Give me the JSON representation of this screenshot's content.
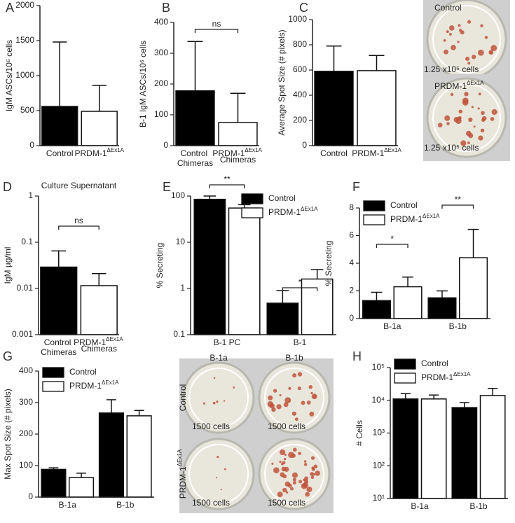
{
  "chart_data": [
    {
      "panel": "A",
      "type": "bar",
      "y_label": "IgM ASCs/10⁶ cells",
      "categories": [
        "Control",
        "PRDM-1ΔEx1A"
      ],
      "values": [
        560,
        490
      ],
      "errors": [
        920,
        370
      ],
      "colors": [
        "#000000",
        "#ffffff"
      ],
      "ylim": [
        0,
        2000
      ],
      "yticks": [
        0,
        500,
        1000,
        1500,
        2000
      ]
    },
    {
      "panel": "B",
      "type": "bar",
      "y_label": "B-1 IgM ASCs/10⁶ cells",
      "categories": [
        "Control Chimeras",
        "PRDM-1ΔEx1A Chimeras"
      ],
      "values": [
        178,
        75
      ],
      "errors": [
        160,
        95
      ],
      "colors": [
        "#000000",
        "#ffffff"
      ],
      "ylim": [
        0,
        400
      ],
      "yticks": [
        0,
        100,
        200,
        300,
        400
      ],
      "annotations": [
        "ns"
      ]
    },
    {
      "panel": "C",
      "type": "bar",
      "y_label": "Average Spot Size (# pixels)",
      "categories": [
        "Control",
        "PRDM-1ΔEx1A"
      ],
      "values": [
        590,
        595
      ],
      "errors": [
        200,
        120
      ],
      "colors": [
        "#000000",
        "#ffffff"
      ],
      "ylim": [
        0,
        1000
      ],
      "yticks": [
        0,
        200,
        400,
        600,
        800,
        1000
      ],
      "images": [
        {
          "label": "Control",
          "caption": "1.25 x10⁵ cells"
        },
        {
          "label": "PRDM-1ΔEx1A",
          "caption": "1.25 x10⁵ cells"
        }
      ]
    },
    {
      "panel": "D",
      "type": "bar",
      "title": "Culture Supernatant",
      "y_label": "IgM µg/ml",
      "categories": [
        "Control Chimeras",
        "PRDM-1ΔEx1A Chimeras"
      ],
      "values": [
        0.029,
        0.0115
      ],
      "errors": [
        0.036,
        0.0095
      ],
      "colors": [
        "#000000",
        "#ffffff"
      ],
      "log_scale": true,
      "ylim": [
        0.001,
        1
      ],
      "yticks": [
        0.001,
        0.01,
        0.1,
        1
      ],
      "annotations": [
        "ns"
      ]
    },
    {
      "panel": "E",
      "type": "bar",
      "y_label": "% Secreting",
      "categories": [
        "B-1 PC",
        "B-1"
      ],
      "series": [
        {
          "name": "Control",
          "color": "#000000",
          "values": [
            85,
            0.48
          ],
          "errors": [
            15,
            0.42
          ]
        },
        {
          "name": "PRDM-1ΔEx1A",
          "color": "#ffffff",
          "values": [
            55,
            1.6
          ],
          "errors": [
            10,
            0.95
          ]
        }
      ],
      "log_scale": true,
      "ylim": [
        0.1,
        100
      ],
      "yticks": [
        0.1,
        1,
        10,
        100
      ],
      "annotations": [
        "**",
        "*"
      ],
      "legend": "top-right"
    },
    {
      "panel": "F",
      "type": "bar",
      "y_label": "% Secreting",
      "categories": [
        "B-1a",
        "B-1b"
      ],
      "series": [
        {
          "name": "Control",
          "color": "#000000",
          "values": [
            1.3,
            1.5
          ],
          "errors": [
            0.6,
            0.5
          ]
        },
        {
          "name": "PRDM-1ΔEx1A",
          "color": "#ffffff",
          "values": [
            2.3,
            4.4
          ],
          "errors": [
            0.7,
            2.05
          ]
        }
      ],
      "ylim": [
        0,
        8
      ],
      "yticks": [
        0,
        2,
        4,
        6,
        8
      ],
      "annotations": [
        "*",
        "**"
      ],
      "legend": "top-left"
    },
    {
      "panel": "G",
      "type": "bar",
      "y_label": "Max Spot Size (# pixels)",
      "categories": [
        "B-1a",
        "B-1b"
      ],
      "series": [
        {
          "name": "Control",
          "color": "#000000",
          "values": [
            88,
            267
          ],
          "errors": [
            5,
            42
          ]
        },
        {
          "name": "PRDM-1ΔEx1A",
          "color": "#ffffff",
          "values": [
            62,
            258
          ],
          "errors": [
            14,
            17
          ]
        }
      ],
      "ylim": [
        0,
        400
      ],
      "yticks": [
        0,
        100,
        200,
        300,
        400
      ],
      "legend": "top-left",
      "image_grid": {
        "columns": [
          "B-1a",
          "B-1b"
        ],
        "rows": [
          "Control",
          "PRDM-1ΔEx1A"
        ],
        "caption": "1500 cells"
      }
    },
    {
      "panel": "H",
      "type": "bar",
      "y_label": "# Cells",
      "categories": [
        "B-1a",
        "B-1b"
      ],
      "series": [
        {
          "name": "Control",
          "color": "#000000",
          "values": [
            11000,
            6000
          ],
          "errors": [
            5000,
            2500
          ]
        },
        {
          "name": "PRDM-1ΔEx1A",
          "color": "#ffffff",
          "values": [
            11000,
            14000
          ],
          "errors": [
            3500,
            9000
          ]
        }
      ],
      "log_scale": true,
      "ylim": [
        10,
        100000
      ],
      "yticks": [
        {
          "value": 10,
          "label": "10¹"
        },
        {
          "value": 100,
          "label": "10²"
        },
        {
          "value": 1000,
          "label": "10³"
        },
        {
          "value": 10000,
          "label": "10⁴"
        },
        {
          "value": 100000,
          "label": "10⁵"
        }
      ],
      "legend": "top-left"
    }
  ]
}
